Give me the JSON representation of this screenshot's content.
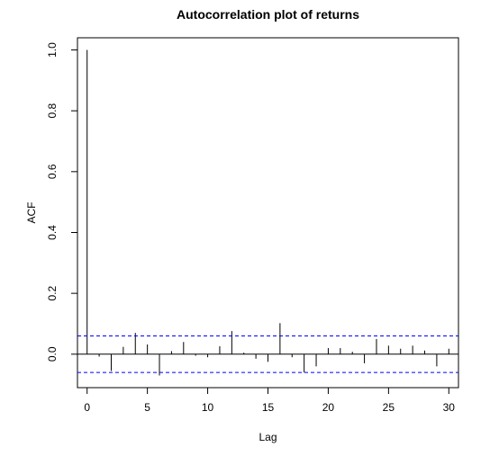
{
  "chart_data": {
    "type": "bar",
    "title": "Autocorrelation plot of returns",
    "xlabel": "Lag",
    "ylabel": "ACF",
    "x_ticks": [
      "0",
      "5",
      "10",
      "15",
      "20",
      "25",
      "30"
    ],
    "y_ticks": [
      "0.0",
      "0.2",
      "0.4",
      "0.6",
      "0.8",
      "1.0"
    ],
    "xlim": [
      -0.8,
      30.8
    ],
    "ylim": [
      -0.11,
      1.04
    ],
    "grid": false,
    "confidence_band": {
      "upper": 0.06,
      "lower": -0.06,
      "color": "#0000ff"
    },
    "series": [
      {
        "lags": [
          0,
          1,
          2,
          3,
          4,
          5,
          6,
          7,
          8,
          9,
          10,
          11,
          12,
          13,
          14,
          15,
          16,
          17,
          18,
          19,
          20,
          21,
          22,
          23,
          24,
          25,
          26,
          27,
          28,
          29,
          30
        ],
        "values": [
          1.0,
          -0.008,
          -0.055,
          0.024,
          0.07,
          0.032,
          -0.07,
          0.01,
          0.04,
          -0.005,
          -0.01,
          0.026,
          0.076,
          0.005,
          -0.015,
          -0.025,
          0.102,
          -0.01,
          -0.06,
          -0.04,
          0.02,
          0.02,
          0.008,
          -0.03,
          0.05,
          0.028,
          0.018,
          0.028,
          0.012,
          -0.04,
          0.018
        ]
      }
    ]
  }
}
